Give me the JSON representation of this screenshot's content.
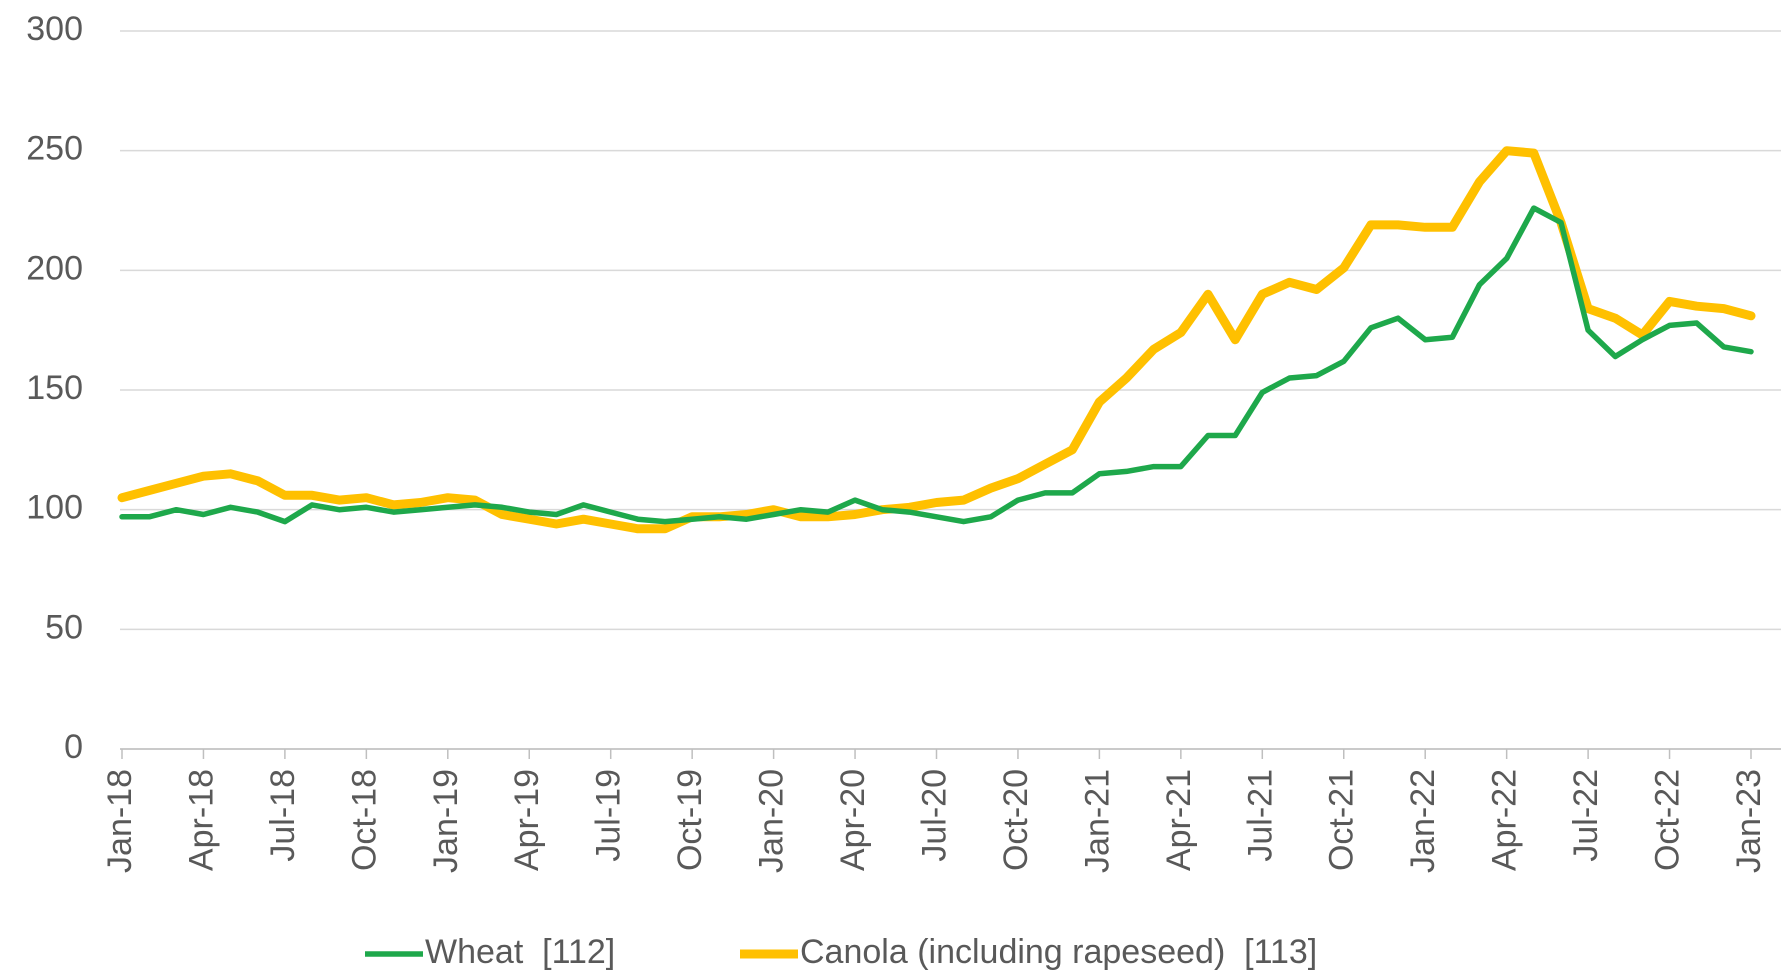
{
  "chart_data": {
    "type": "line",
    "categories": [
      "Jan-18",
      null,
      null,
      "Apr-18",
      null,
      null,
      "Jul-18",
      null,
      null,
      "Oct-18",
      null,
      null,
      "Jan-19",
      null,
      null,
      "Apr-19",
      null,
      null,
      "Jul-19",
      null,
      null,
      "Oct-19",
      null,
      null,
      "Jan-20",
      null,
      null,
      "Apr-20",
      null,
      null,
      "Jul-20",
      null,
      null,
      "Oct-20",
      null,
      null,
      "Jan-21",
      null,
      null,
      "Apr-21",
      null,
      null,
      "Jul-21",
      null,
      null,
      "Oct-21",
      null,
      null,
      "Jan-22",
      null,
      null,
      "Apr-22",
      null,
      null,
      "Jul-22",
      null,
      null,
      "Oct-22",
      null,
      null,
      "Jan-23"
    ],
    "series": [
      {
        "name": "Wheat  [112]",
        "color": "#1ea84b",
        "values": [
          97,
          97,
          100,
          98,
          101,
          99,
          95,
          102,
          100,
          101,
          99,
          100,
          101,
          102,
          101,
          99,
          98,
          102,
          99,
          96,
          95,
          96,
          97,
          96,
          98,
          100,
          99,
          104,
          100,
          99,
          97,
          95,
          97,
          104,
          107,
          107,
          115,
          116,
          118,
          118,
          131,
          131,
          149,
          155,
          156,
          162,
          176,
          180,
          171,
          172,
          194,
          205,
          226,
          220,
          175,
          164,
          171,
          177,
          178,
          168,
          166
        ]
      },
      {
        "name": "Canola (including rapeseed)  [113]",
        "color": "#ffc000",
        "values": [
          105,
          108,
          111,
          114,
          115,
          112,
          106,
          106,
          104,
          105,
          102,
          103,
          105,
          104,
          98,
          96,
          94,
          96,
          94,
          92,
          92,
          97,
          97,
          98,
          100,
          97,
          97,
          98,
          100,
          101,
          103,
          104,
          109,
          113,
          119,
          125,
          145,
          155,
          167,
          174,
          190,
          171,
          190,
          195,
          192,
          201,
          219,
          219,
          218,
          218,
          237,
          250,
          249,
          220,
          184,
          180,
          173,
          187,
          185,
          184,
          181
        ]
      }
    ],
    "ylim": [
      0,
      300
    ],
    "yticks": [
      0,
      50,
      100,
      150,
      200,
      250,
      300
    ],
    "grid": true,
    "legend": "bottom"
  }
}
